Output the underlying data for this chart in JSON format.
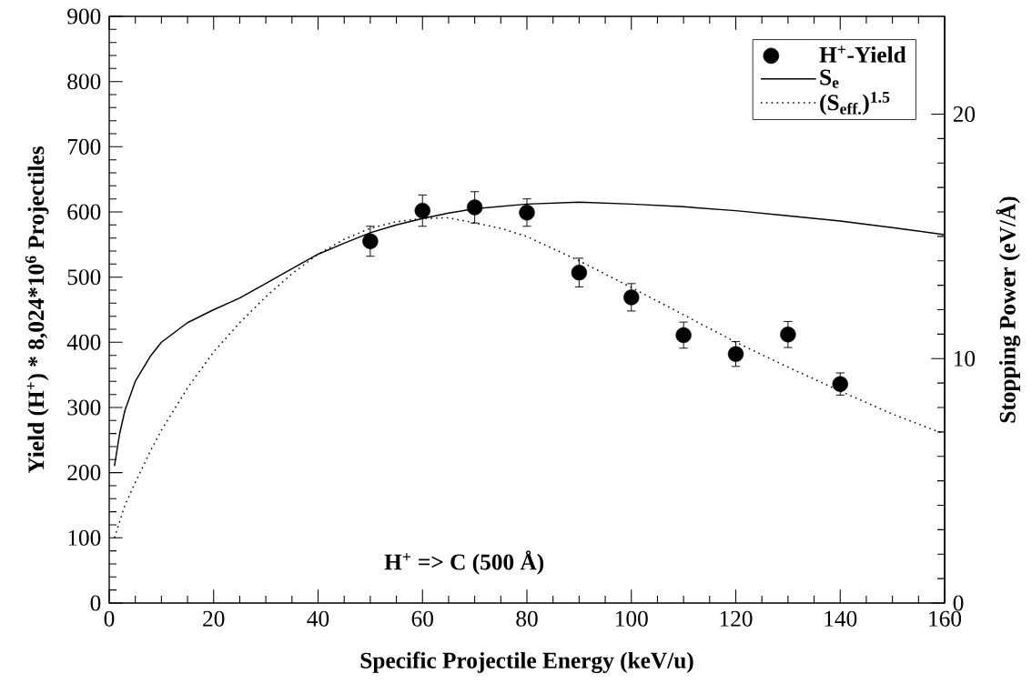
{
  "chart_data": {
    "type": "scatter",
    "xlabel": "Specific Projectile Energy (keV/u)",
    "ylabel": "Yield (H$^{+}$) * 8,024*10$^{6}$ Projectiles",
    "y2label": "Stopping Power (eV/Å)",
    "annotations": [
      "H$^{+}$  => C (500 Å)"
    ],
    "xlim": [
      0,
      160
    ],
    "xticks": [
      0,
      20,
      40,
      60,
      80,
      100,
      120,
      140,
      160
    ],
    "ylim": [
      0,
      900
    ],
    "yticks": [
      0,
      100,
      200,
      300,
      400,
      500,
      600,
      700,
      800,
      900
    ],
    "y2lim": [
      0,
      24
    ],
    "y2ticks": [
      0,
      10,
      20
    ],
    "legend": "top right",
    "grid": false,
    "series": [
      {
        "name": "H$^{+}$-Yield",
        "color": "#000000",
        "marker": "circle",
        "x": [
          50,
          60,
          70,
          80,
          90,
          100,
          110,
          120,
          130,
          140
        ],
        "values": [
          555,
          602,
          607,
          599,
          507,
          469,
          411,
          382,
          412,
          336
        ],
        "errors": [
          23,
          24,
          24,
          21,
          22,
          21,
          20,
          19,
          20,
          17
        ]
      },
      {
        "name": "S$_{e}$",
        "type": "line",
        "axis": "y2",
        "color": "#000000",
        "line_style": "solid",
        "marker": "none",
        "x": [
          1,
          2,
          3,
          5,
          8,
          10,
          15,
          20,
          25,
          30,
          35,
          40,
          45,
          50,
          55,
          60,
          65,
          70,
          80,
          90,
          100,
          110,
          120,
          130,
          140,
          150,
          160
        ],
        "values": [
          5.6,
          6.93,
          7.87,
          9.07,
          10.13,
          10.67,
          11.47,
          12.0,
          12.48,
          13.07,
          13.68,
          14.27,
          14.72,
          15.15,
          15.47,
          15.73,
          15.95,
          16.13,
          16.32,
          16.4,
          16.32,
          16.21,
          16.05,
          15.84,
          15.63,
          15.36,
          15.07
        ]
      },
      {
        "name": "(S$_{eff.}$)$^{1.5}$",
        "type": "line",
        "axis": "y2",
        "color": "#000000",
        "line_style": "dotted",
        "marker": "none",
        "x": [
          1,
          2,
          3,
          5,
          8,
          10,
          15,
          20,
          25,
          30,
          35,
          40,
          45,
          50,
          55,
          60,
          65,
          70,
          75,
          80,
          90,
          100,
          110,
          120,
          130,
          140,
          150,
          160
        ],
        "values": [
          2.67,
          3.33,
          4.0,
          4.93,
          6.27,
          7.07,
          8.8,
          10.27,
          11.47,
          12.53,
          13.47,
          14.27,
          14.88,
          15.33,
          15.6,
          15.73,
          15.76,
          15.55,
          15.33,
          14.99,
          14.0,
          12.91,
          11.79,
          10.67,
          9.65,
          8.67,
          7.73,
          6.91
        ]
      }
    ]
  }
}
